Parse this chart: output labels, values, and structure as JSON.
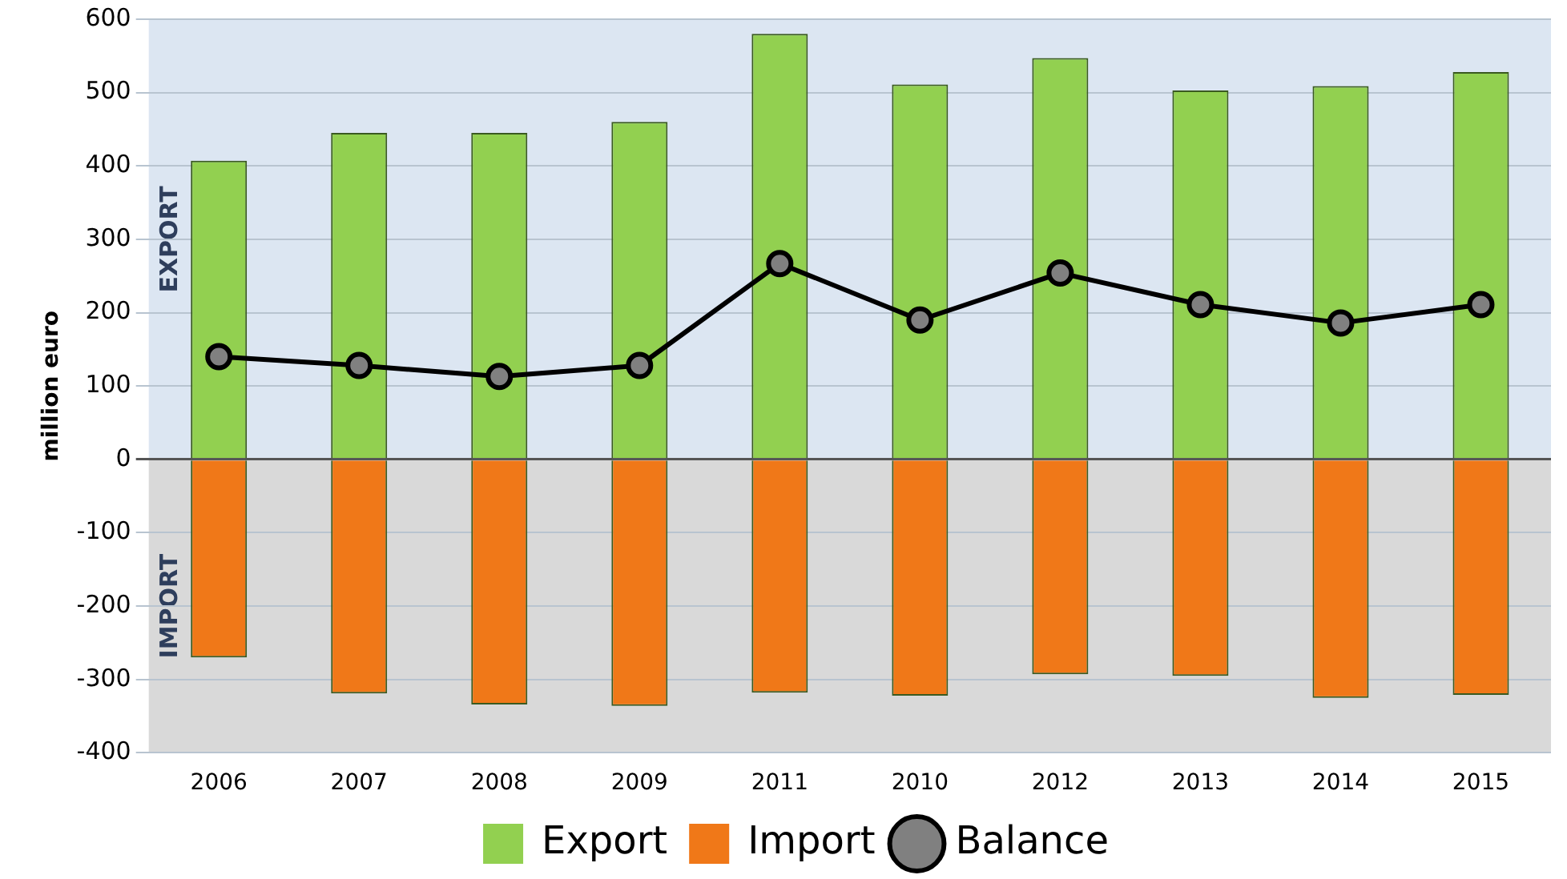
{
  "chart_data": {
    "type": "bar",
    "stacked": true,
    "categories": [
      "2006",
      "2007",
      "2008",
      "2009",
      "2011",
      "2010",
      "2012",
      "2013",
      "2014",
      "2015"
    ],
    "ylabel": "million euro",
    "series": [
      {
        "name": "Export",
        "color": "#92d050",
        "values": [
          407,
          445,
          445,
          460,
          580,
          511,
          547,
          503,
          509,
          528
        ]
      },
      {
        "name": "Import",
        "color": "#f07818",
        "values": [
          -270,
          -319,
          -334,
          -336,
          -318,
          -322,
          -293,
          -295,
          -325,
          -321
        ]
      },
      {
        "name": "Balance",
        "type": "line",
        "color": "#000000",
        "marker": "circle",
        "values": [
          140,
          128,
          113,
          128,
          267,
          190,
          254,
          211,
          186,
          211
        ]
      }
    ],
    "ylim": [
      -400,
      600
    ],
    "yticks": [
      -400,
      -300,
      -200,
      -100,
      0,
      100,
      200,
      300,
      400,
      500,
      600
    ],
    "bands": [
      {
        "axis": "y",
        "from": 0,
        "to": 600,
        "label": "EXPORT",
        "color": "#dce6f2"
      },
      {
        "axis": "y",
        "from": -400,
        "to": 0,
        "label": "IMPORT",
        "color": "#d9d9d9"
      }
    ],
    "grid": "y",
    "legend": "bottom"
  }
}
